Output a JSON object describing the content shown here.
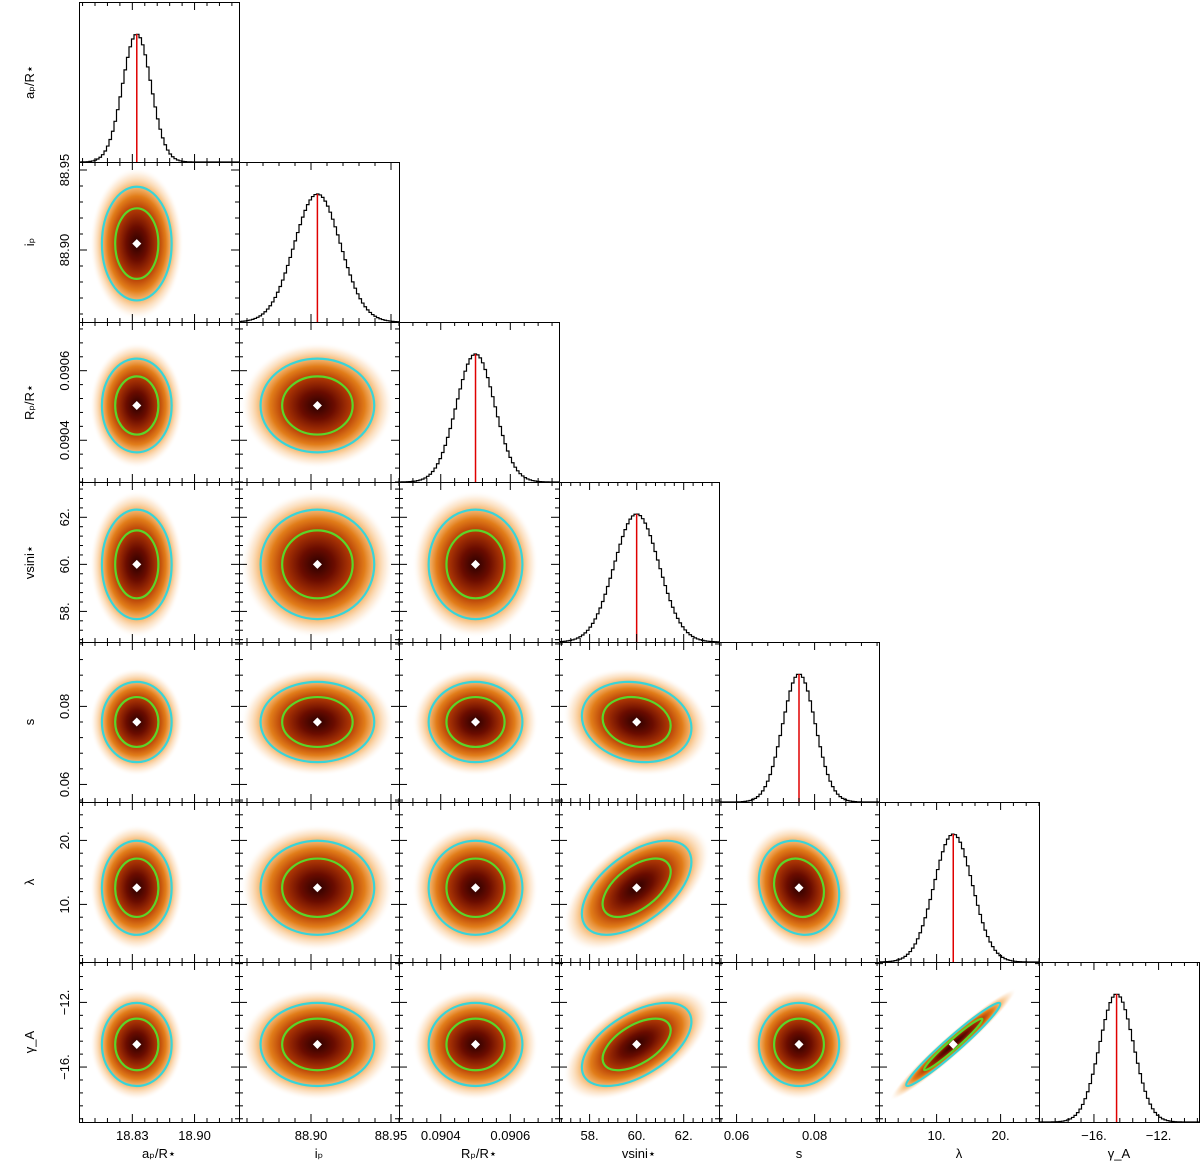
{
  "chart_data": {
    "type": "corner",
    "parameters": [
      {
        "key": "ap_Rs",
        "label": "aₚ/R⋆",
        "median": 18.835,
        "sigma": 0.016,
        "range": [
          18.77,
          18.95
        ],
        "ticks": [
          {
            "v": 18.83,
            "t": "18.83"
          },
          {
            "v": 18.9,
            "t": "18.90"
          }
        ]
      },
      {
        "key": "ip",
        "label": "iₚ",
        "median": 88.904,
        "sigma": 0.0145,
        "range": [
          88.855,
          88.955
        ],
        "ticks": [
          {
            "v": 88.9,
            "t": "88.90"
          },
          {
            "v": 88.95,
            "t": "88.95"
          }
        ]
      },
      {
        "key": "Rp_Rs",
        "label": "Rₚ/R⋆",
        "median": 0.0905,
        "sigma": 5.5e-05,
        "range": [
          0.09028,
          0.09074
        ],
        "ticks": [
          {
            "v": 0.0904,
            "t": "0.0904"
          },
          {
            "v": 0.0906,
            "t": "0.0906"
          }
        ]
      },
      {
        "key": "vsini",
        "label": "vsini⋆",
        "median": 60.0,
        "sigma": 0.95,
        "range": [
          56.7,
          63.5
        ],
        "ticks": [
          {
            "v": 58,
            "t": "58."
          },
          {
            "v": 60,
            "t": "60."
          },
          {
            "v": 62,
            "t": "62."
          }
        ]
      },
      {
        "key": "s",
        "label": "s",
        "median": 0.076,
        "sigma": 0.0042,
        "range": [
          0.0555,
          0.0965
        ],
        "ticks": [
          {
            "v": 0.06,
            "t": "0.06"
          },
          {
            "v": 0.08,
            "t": "0.08"
          }
        ]
      },
      {
        "key": "lambda",
        "label": "λ",
        "median": 12.6,
        "sigma": 3.0,
        "range": [
          1.0,
          26.0
        ],
        "ticks": [
          {
            "v": 10,
            "t": "10."
          },
          {
            "v": 20,
            "t": "20."
          }
        ]
      },
      {
        "key": "gammaA",
        "label": "γ_A",
        "median": -14.6,
        "sigma": 1.05,
        "range": [
          -19.4,
          -9.5
        ],
        "ticks": [
          {
            "v": -16,
            "t": "−16."
          },
          {
            "v": -12,
            "t": "−12."
          }
        ]
      }
    ],
    "row_label_ticks": [
      null,
      [
        {
          "v": 88.9,
          "t": "88.90"
        },
        {
          "v": 88.95,
          "t": "88.95"
        }
      ],
      [
        {
          "v": 0.0904,
          "t": "0.0904"
        },
        {
          "v": 0.0906,
          "t": "0.0906"
        }
      ],
      [
        {
          "v": 58,
          "t": "58."
        },
        {
          "v": 60,
          "t": "60."
        },
        {
          "v": 62,
          "t": "62."
        }
      ],
      [
        {
          "v": 0.06,
          "t": "0.06"
        },
        {
          "v": 0.08,
          "t": "0.08"
        }
      ],
      [
        {
          "v": 10,
          "t": "10."
        },
        {
          "v": 20,
          "t": "20."
        }
      ],
      [
        {
          "v": -16,
          "t": "−16."
        },
        {
          "v": -12,
          "t": "−12."
        }
      ]
    ],
    "correlations": [
      {
        "a": 3,
        "b": 5,
        "rho": 0.55
      },
      {
        "a": 3,
        "b": 6,
        "rho": 0.55
      },
      {
        "a": 4,
        "b": 5,
        "rho": -0.15
      },
      {
        "a": 3,
        "b": 4,
        "rho": -0.15
      },
      {
        "a": 5,
        "b": 6,
        "rho": 0.97
      }
    ],
    "contours": [
      {
        "level": "1-sigma",
        "color": "#5ad62a"
      },
      {
        "level": "2-sigma",
        "color": "#38d4d8"
      }
    ],
    "colors": {
      "median_line": "#e00000",
      "marker": "#ffffff",
      "histogram": "#000000"
    }
  }
}
